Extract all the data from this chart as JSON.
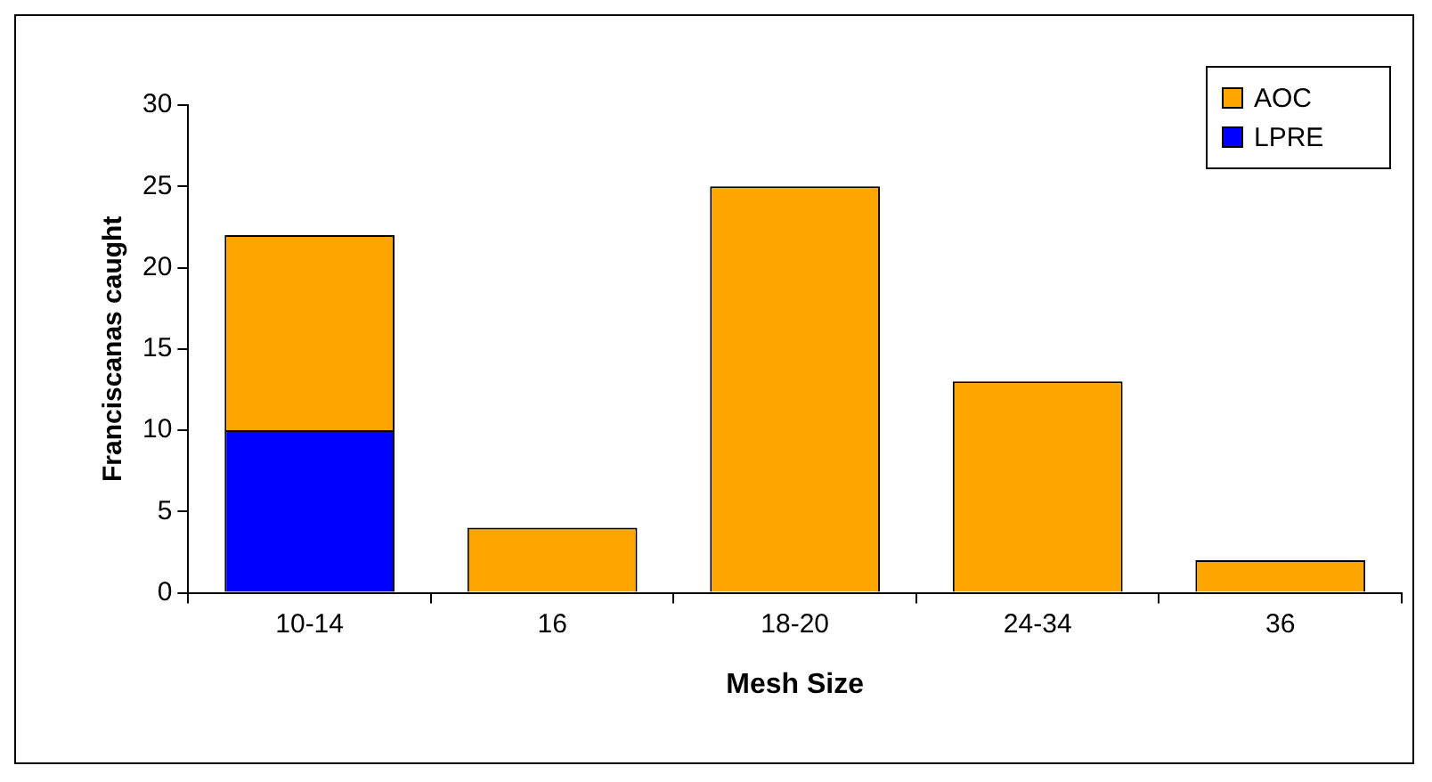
{
  "chart_data": {
    "type": "bar",
    "stacked": true,
    "xlabel": "Mesh Size",
    "ylabel": "Franciscanas caught",
    "categories": [
      "10-14",
      "16",
      "18-20",
      "24-34",
      "36"
    ],
    "series": [
      {
        "name": "LPRE",
        "color": "#0000ff",
        "values": [
          10,
          0,
          0,
          0,
          0
        ]
      },
      {
        "name": "AOC",
        "color": "#ffa500",
        "values": [
          12,
          4,
          25,
          13,
          2
        ]
      }
    ],
    "ylim": [
      0,
      30
    ],
    "yticks": [
      0,
      5,
      10,
      15,
      20,
      25,
      30
    ],
    "grid": false,
    "legend": "top right"
  }
}
